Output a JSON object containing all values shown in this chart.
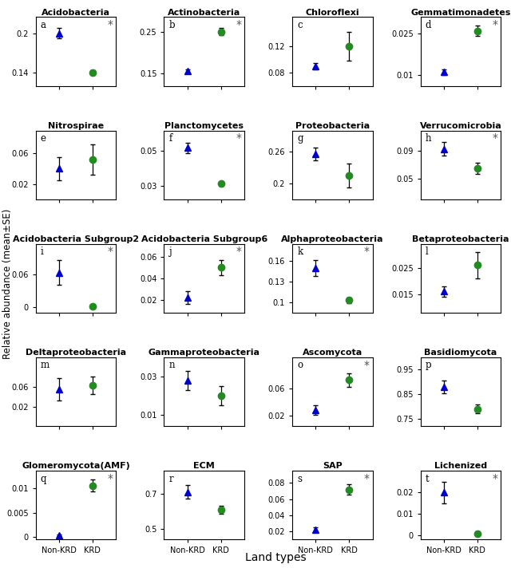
{
  "panels": [
    {
      "label": "a",
      "title": "Acidobacteria",
      "non_krd_mean": 0.2,
      "non_krd_se": 0.008,
      "krd_mean": 0.14,
      "krd_se": 0.004,
      "ylim": [
        0.12,
        0.225
      ],
      "yticks": [
        0.14,
        0.2
      ],
      "sig": true
    },
    {
      "label": "b",
      "title": "Actinobacteria",
      "non_krd_mean": 0.155,
      "non_krd_se": 0.004,
      "krd_mean": 0.25,
      "krd_se": 0.008,
      "ylim": [
        0.12,
        0.285
      ],
      "yticks": [
        0.15,
        0.25
      ],
      "sig": true
    },
    {
      "label": "c",
      "title": "Chloroflexi",
      "non_krd_mean": 0.09,
      "non_krd_se": 0.005,
      "krd_mean": 0.12,
      "krd_se": 0.022,
      "ylim": [
        0.06,
        0.165
      ],
      "yticks": [
        0.08,
        0.12
      ],
      "sig": false
    },
    {
      "label": "d",
      "title": "Gemmatimonadetes",
      "non_krd_mean": 0.011,
      "non_krd_se": 0.001,
      "krd_mean": 0.026,
      "krd_se": 0.002,
      "ylim": [
        0.006,
        0.031
      ],
      "yticks": [
        0.01,
        0.025
      ],
      "sig": true
    },
    {
      "label": "e",
      "title": "Nitrospirae",
      "non_krd_mean": 0.04,
      "non_krd_se": 0.015,
      "krd_mean": 0.052,
      "krd_se": 0.02,
      "ylim": [
        0.0,
        0.09
      ],
      "yticks": [
        0.02,
        0.06
      ],
      "sig": false
    },
    {
      "label": "f",
      "title": "Planctomycetes",
      "non_krd_mean": 0.052,
      "non_krd_se": 0.003,
      "krd_mean": 0.031,
      "krd_se": 0.001,
      "ylim": [
        0.022,
        0.062
      ],
      "yticks": [
        0.03,
        0.05
      ],
      "sig": true
    },
    {
      "label": "g",
      "title": "Proteobacteria",
      "non_krd_mean": 0.255,
      "non_krd_se": 0.012,
      "krd_mean": 0.215,
      "krd_se": 0.022,
      "ylim": [
        0.17,
        0.3
      ],
      "yticks": [
        0.2,
        0.26
      ],
      "sig": false
    },
    {
      "label": "h",
      "title": "Verrucomicrobia",
      "non_krd_mean": 0.093,
      "non_krd_se": 0.01,
      "krd_mean": 0.065,
      "krd_se": 0.008,
      "ylim": [
        0.02,
        0.12
      ],
      "yticks": [
        0.05,
        0.09
      ],
      "sig": true
    },
    {
      "label": "i",
      "title": "Acidobacteria Subgroup2",
      "non_krd_mean": 0.063,
      "non_krd_se": 0.022,
      "krd_mean": 0.002,
      "krd_se": 0.001,
      "ylim": [
        -0.01,
        0.115
      ],
      "yticks": [
        0.0,
        0.06
      ],
      "sig": true
    },
    {
      "label": "j",
      "title": "Acidobacteria Subgroup6",
      "non_krd_mean": 0.022,
      "non_krd_se": 0.006,
      "krd_mean": 0.05,
      "krd_se": 0.007,
      "ylim": [
        0.008,
        0.072
      ],
      "yticks": [
        0.02,
        0.04,
        0.06
      ],
      "sig": true
    },
    {
      "label": "k",
      "title": "Alphaproteobacteria",
      "non_krd_mean": 0.15,
      "non_krd_se": 0.012,
      "krd_mean": 0.103,
      "krd_se": 0.004,
      "ylim": [
        0.085,
        0.185
      ],
      "yticks": [
        0.1,
        0.13,
        0.16
      ],
      "sig": true
    },
    {
      "label": "l",
      "title": "Betaproteobacteria",
      "non_krd_mean": 0.016,
      "non_krd_se": 0.002,
      "krd_mean": 0.026,
      "krd_se": 0.005,
      "ylim": [
        0.008,
        0.034
      ],
      "yticks": [
        0.015,
        0.025
      ],
      "sig": false
    },
    {
      "label": "m",
      "title": "Deltaproteobacteria",
      "non_krd_mean": 0.055,
      "non_krd_se": 0.022,
      "krd_mean": 0.063,
      "krd_se": 0.018,
      "ylim": [
        -0.02,
        0.12
      ],
      "yticks": [
        0.02,
        0.06
      ],
      "sig": false
    },
    {
      "label": "n",
      "title": "Gammaproteobacteria",
      "non_krd_mean": 0.028,
      "non_krd_se": 0.005,
      "krd_mean": 0.02,
      "krd_se": 0.005,
      "ylim": [
        0.004,
        0.04
      ],
      "yticks": [
        0.01,
        0.03
      ],
      "sig": false
    },
    {
      "label": "o",
      "title": "Ascomycota",
      "non_krd_mean": 0.028,
      "non_krd_se": 0.007,
      "krd_mean": 0.072,
      "krd_se": 0.01,
      "ylim": [
        0.005,
        0.105
      ],
      "yticks": [
        0.02,
        0.06
      ],
      "sig": true
    },
    {
      "label": "p",
      "title": "Basidiomycota",
      "non_krd_mean": 0.88,
      "non_krd_se": 0.025,
      "krd_mean": 0.79,
      "krd_se": 0.018,
      "ylim": [
        0.72,
        1.0
      ],
      "yticks": [
        0.75,
        0.85,
        0.95
      ],
      "sig": false
    },
    {
      "label": "q",
      "title": "Glomeromycota(AMF)",
      "non_krd_mean": 0.00035,
      "non_krd_se": 0.00015,
      "krd_mean": 0.0105,
      "krd_se": 0.0012,
      "ylim": [
        -0.0005,
        0.0135
      ],
      "yticks": [
        0.0,
        0.005,
        0.01
      ],
      "sig": true
    },
    {
      "label": "r",
      "title": "ECM",
      "non_krd_mean": 0.71,
      "non_krd_se": 0.038,
      "krd_mean": 0.61,
      "krd_se": 0.022,
      "ylim": [
        0.44,
        0.83
      ],
      "yticks": [
        0.5,
        0.7
      ],
      "sig": false
    },
    {
      "label": "s",
      "title": "SAP",
      "non_krd_mean": 0.022,
      "non_krd_se": 0.003,
      "krd_mean": 0.072,
      "krd_se": 0.006,
      "ylim": [
        0.01,
        0.095
      ],
      "yticks": [
        0.02,
        0.04,
        0.06,
        0.08
      ],
      "sig": true
    },
    {
      "label": "t",
      "title": "Lichenized",
      "non_krd_mean": 0.02,
      "non_krd_se": 0.005,
      "krd_mean": 0.0008,
      "krd_se": 0.0003,
      "ylim": [
        -0.002,
        0.03
      ],
      "yticks": [
        0.0,
        0.01,
        0.02
      ],
      "sig": true
    }
  ],
  "non_krd_color": "#0000CD",
  "krd_color": "#228B22",
  "marker_triangle": "^",
  "marker_circle": "o",
  "marker_size": 6,
  "ylabel": "Relative abundance (mean±SE)",
  "xlabel": "Land types",
  "x_labels": [
    "Non-KRD",
    "KRD"
  ],
  "x_positions": [
    1,
    2
  ],
  "fig_width": 6.4,
  "fig_height": 7.12,
  "sig_marker": "*",
  "sig_color": "#555555"
}
